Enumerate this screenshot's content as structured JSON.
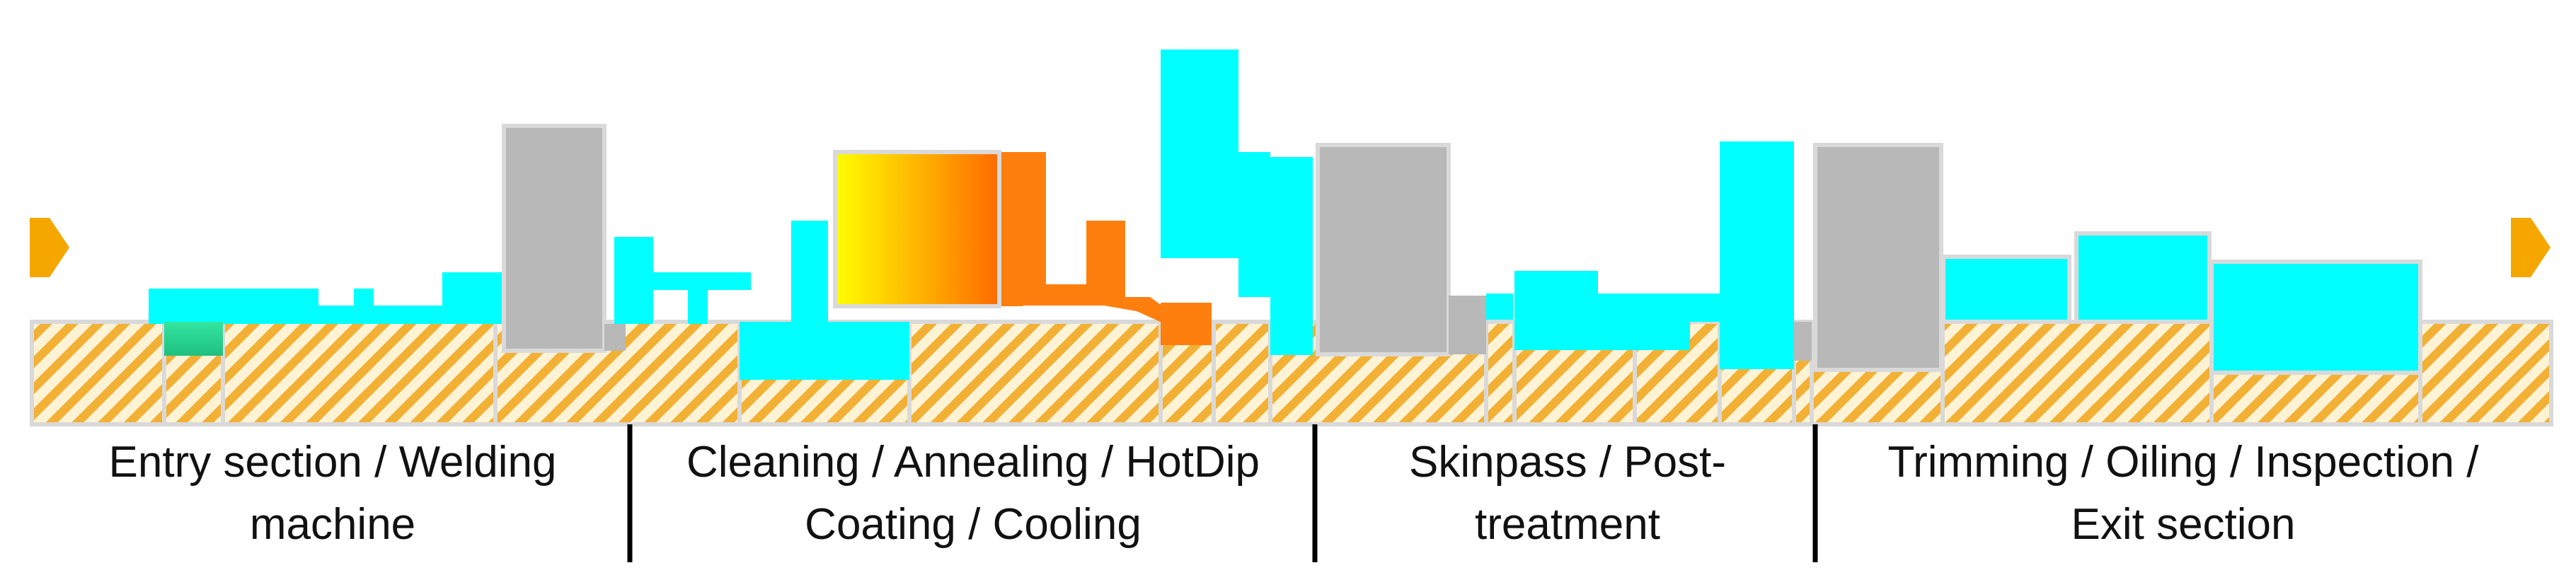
{
  "colors": {
    "foundation_stripe_a": "#f2b035",
    "foundation_stripe_b": "#fff3d6",
    "equipment_cyan": "#00ffff",
    "equipment_grey": "#b8b8b8",
    "outline": "#d9d9d9",
    "furnace_gradient_start": "#ffff00",
    "furnace_gradient_end": "#ff6a00",
    "pot_orange": "#ff7f0e",
    "arrow_orange": "#f5a700",
    "divider": "#000000"
  },
  "flow_arrows": [
    "arrow-icon-inlet",
    "arrow-icon-outlet"
  ],
  "sections": [
    {
      "line1": "Entry section / Welding",
      "line2": "machine"
    },
    {
      "line1": "Cleaning / Annealing / HotDip",
      "line2": "Coating / Cooling"
    },
    {
      "line1": "Skinpass / Post-",
      "line2": "treatment"
    },
    {
      "line1": "Trimming / Oiling / Inspection /",
      "line2": "Exit section"
    }
  ]
}
